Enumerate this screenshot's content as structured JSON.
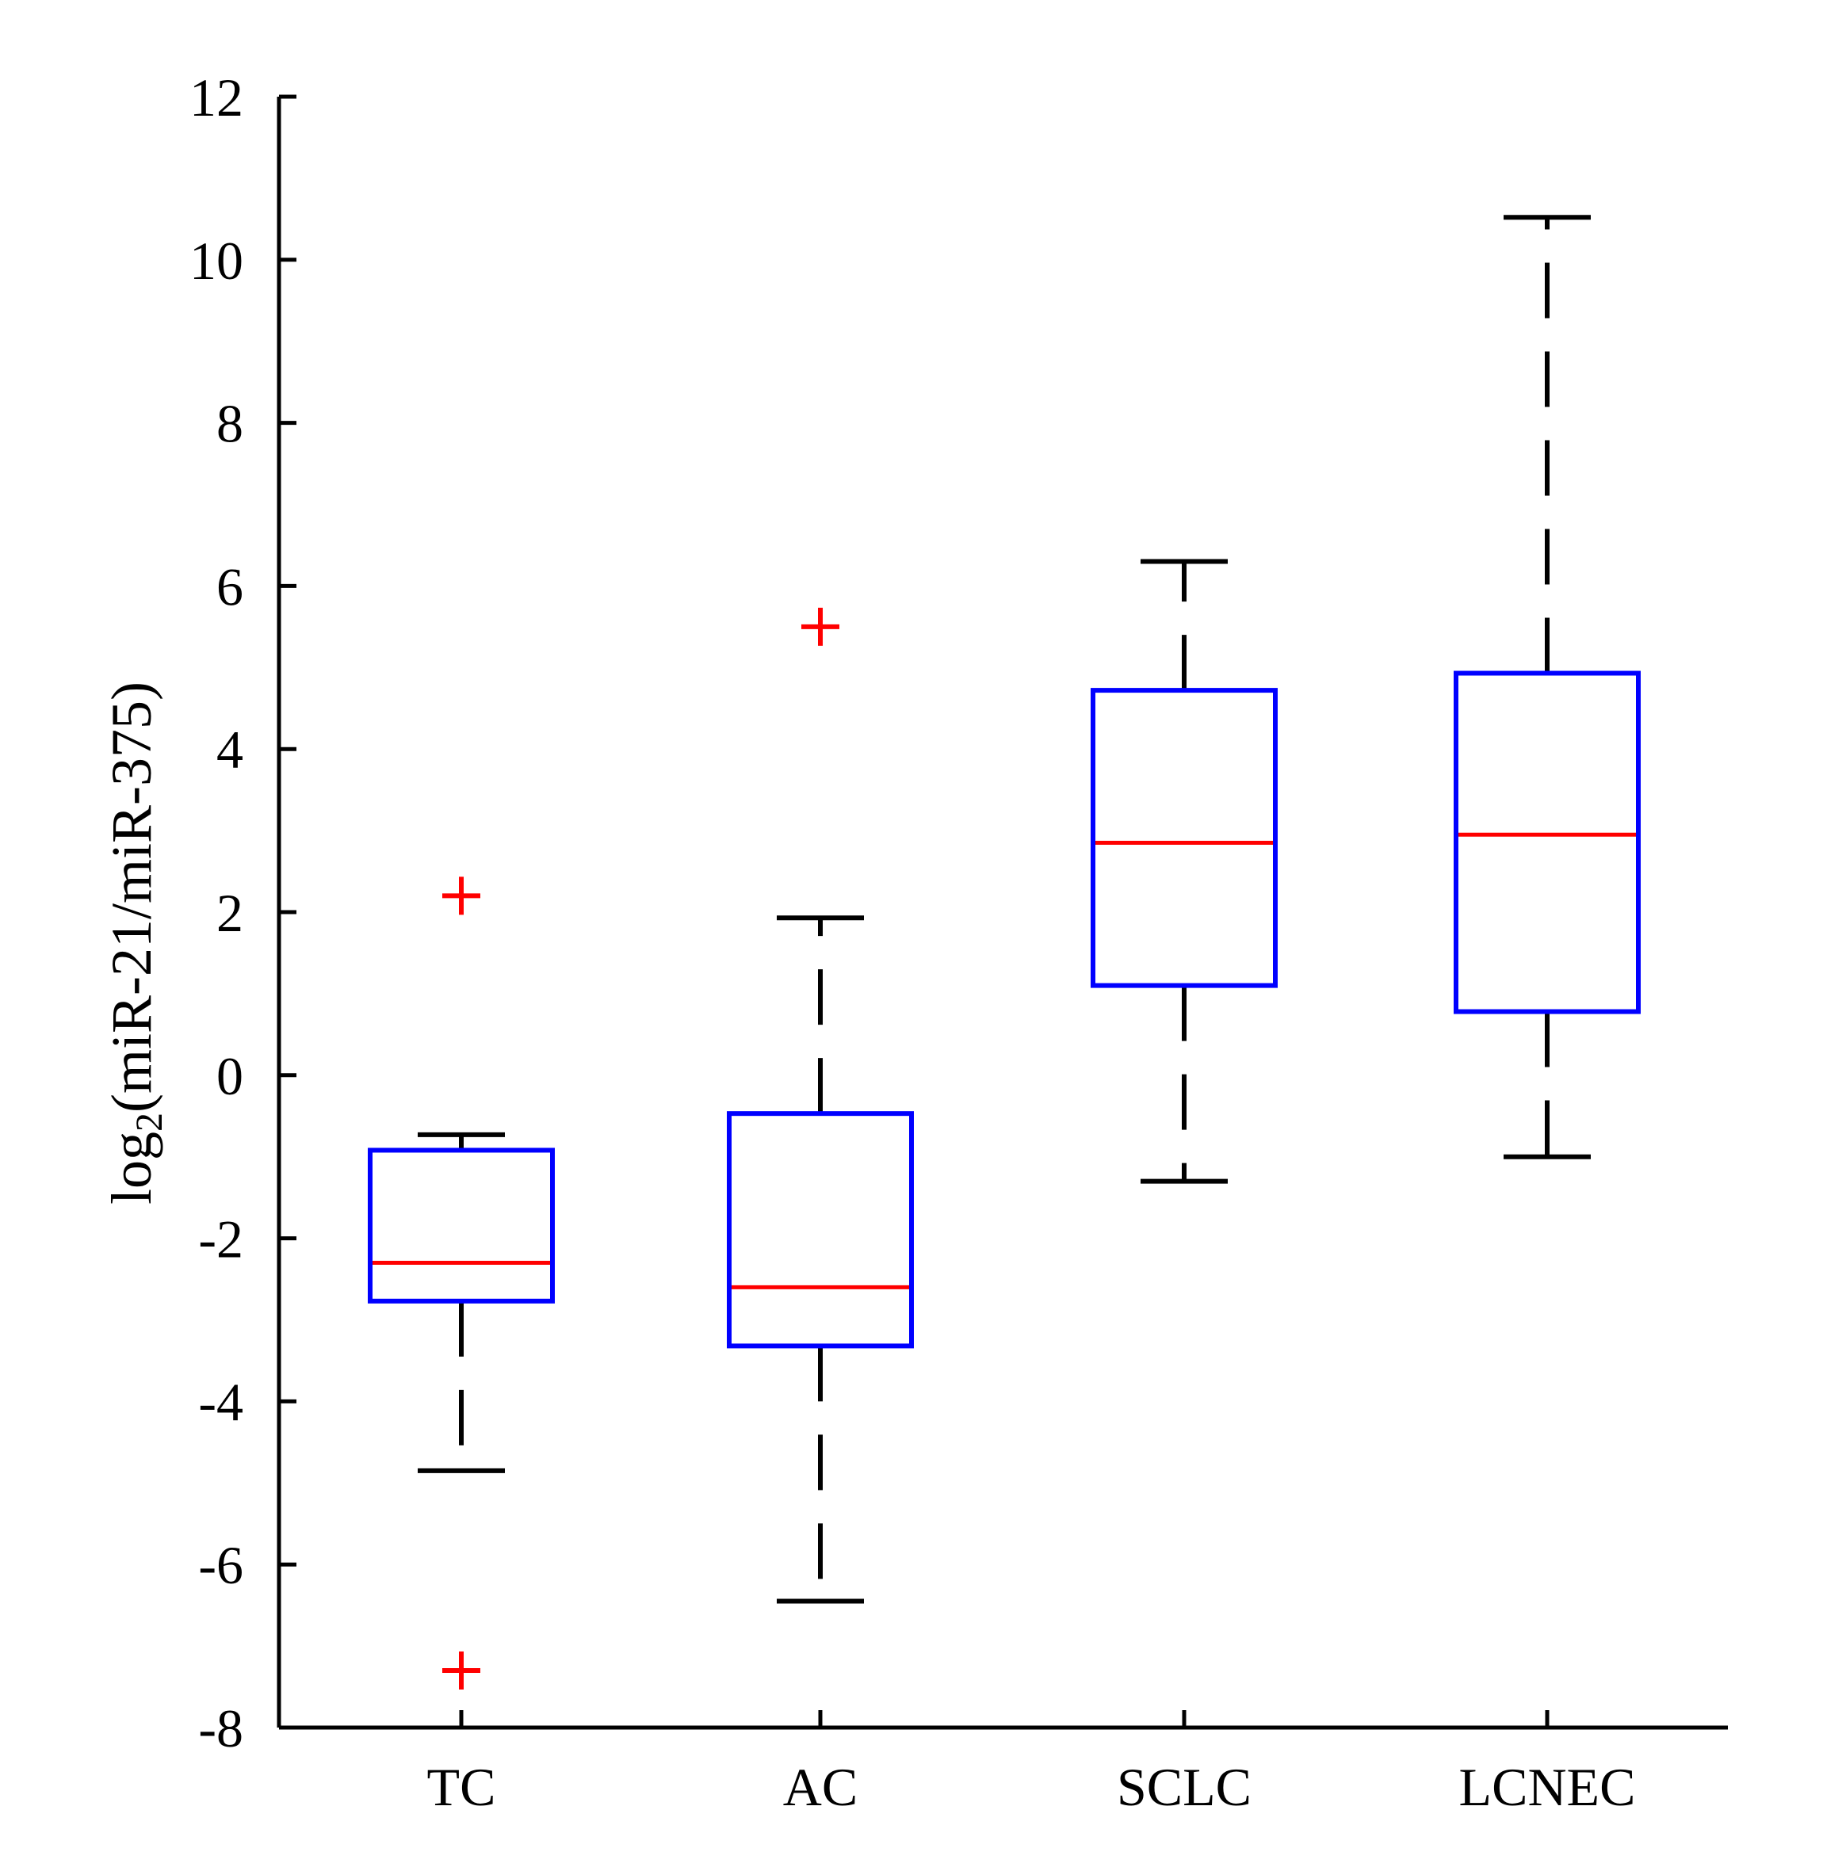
{
  "chart_data": {
    "type": "box",
    "title": "",
    "xlabel": "",
    "ylabel": {
      "prefix": "log",
      "subscript": "2",
      "suffix": "(miR-21/miR-375)"
    },
    "ylim": [
      -8,
      12
    ],
    "yticks": [
      -8,
      -6,
      -4,
      -2,
      0,
      2,
      4,
      6,
      8,
      10,
      12
    ],
    "ytick_labels": [
      "-8",
      "-6",
      "-4",
      "-2",
      "0",
      "2",
      "4",
      "6",
      "8",
      "10",
      "12"
    ],
    "categories": [
      "TC",
      "AC",
      "SCLC",
      "LCNEC"
    ],
    "boxes": [
      {
        "name": "TC",
        "whisker_low": -4.85,
        "q1": -2.77,
        "median": -2.3,
        "q3": -0.92,
        "whisker_high": -0.73,
        "outliers": [
          2.2,
          -7.3
        ]
      },
      {
        "name": "AC",
        "whisker_low": -6.45,
        "q1": -3.32,
        "median": -2.6,
        "q3": -0.47,
        "whisker_high": 1.93,
        "outliers": [
          5.5
        ]
      },
      {
        "name": "SCLC",
        "whisker_low": -1.3,
        "q1": 1.1,
        "median": 2.85,
        "q3": 4.72,
        "whisker_high": 6.3,
        "outliers": []
      },
      {
        "name": "LCNEC",
        "whisker_low": -1.0,
        "q1": 0.78,
        "median": 2.95,
        "q3": 4.93,
        "whisker_high": 10.52,
        "outliers": []
      }
    ],
    "colors": {
      "box": "#0000ff",
      "median": "#ff0000",
      "whisker": "#000000",
      "outlier": "#ff0000",
      "axis": "#000000"
    },
    "grid": false,
    "legend": "none"
  }
}
